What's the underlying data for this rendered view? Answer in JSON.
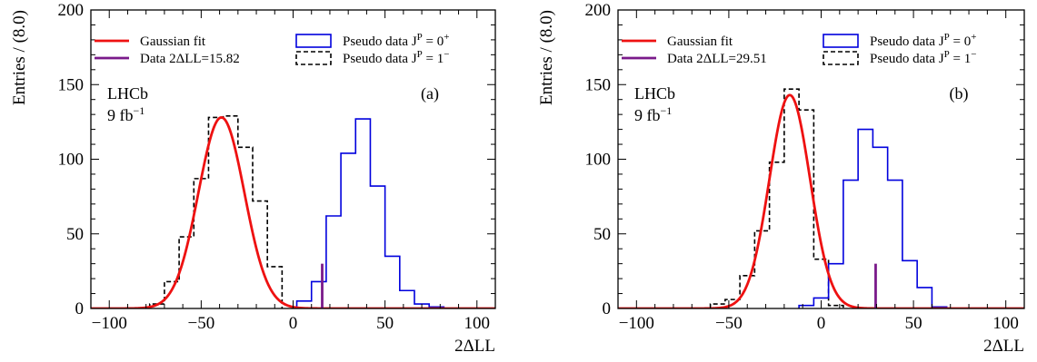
{
  "colors": {
    "fit": "#ee1111",
    "data": "#7a1a8a",
    "jp0": "#0000dd",
    "jp1": "#000000"
  },
  "chart_data": [
    {
      "type": "histogram",
      "panel_label": "(a)",
      "experiment": "LHCb",
      "luminosity": "9 fb",
      "luminosity_sup": "−1",
      "xlabel": "2ΔLL",
      "ylabel": "Entries / (8.0)",
      "xlim": [
        -110,
        110
      ],
      "ylim": [
        0,
        200
      ],
      "xticks": [
        -100,
        -50,
        0,
        50,
        100
      ],
      "yticks": [
        0,
        50,
        100,
        150,
        200
      ],
      "legend": {
        "fit": "Gaussian fit",
        "data": "Data 2ΔLL=15.82",
        "jp0": "Pseudo data J",
        "jp0_sup": "P",
        "jp0_tail": " = 0",
        "jp0_parity": "+",
        "jp1": "Pseudo data J",
        "jp1_sup": "P",
        "jp1_tail": " = 1",
        "jp1_parity": "−"
      },
      "data_value": 15.82,
      "data_line_height": 30,
      "gaussian_fit": {
        "mean": -39,
        "sigma": 12.5,
        "amplitude": 128
      },
      "series": [
        {
          "key": "jp1",
          "bin_edges": [
            -78,
            -70,
            -62,
            -54,
            -46,
            -38,
            -30,
            -22,
            -14,
            -6
          ],
          "counts": [
            3,
            18,
            48,
            87,
            128,
            129,
            108,
            72,
            28
          ]
        },
        {
          "key": "jp0",
          "bin_edges": [
            2,
            10,
            18,
            26,
            34,
            42,
            50,
            58,
            66,
            74,
            82
          ],
          "counts": [
            5,
            18,
            62,
            104,
            127,
            82,
            35,
            12,
            3,
            1
          ]
        }
      ]
    },
    {
      "type": "histogram",
      "panel_label": "(b)",
      "experiment": "LHCb",
      "luminosity": "9 fb",
      "luminosity_sup": "−1",
      "xlabel": "2ΔLL",
      "ylabel": "Entries / (8.0)",
      "xlim": [
        -110,
        110
      ],
      "ylim": [
        0,
        200
      ],
      "xticks": [
        -100,
        -50,
        0,
        50,
        100
      ],
      "yticks": [
        0,
        50,
        100,
        150,
        200
      ],
      "legend": {
        "fit": "Gaussian fit",
        "data": "Data 2ΔLL=29.51",
        "jp0": "Pseudo data J",
        "jp0_sup": "P",
        "jp0_tail": " = 0",
        "jp0_parity": "+",
        "jp1": "Pseudo data J",
        "jp1_sup": "P",
        "jp1_tail": " = 1",
        "jp1_parity": "−"
      },
      "data_value": 29.51,
      "data_line_height": 30,
      "gaussian_fit": {
        "mean": -17,
        "sigma": 11,
        "amplitude": 143
      },
      "series": [
        {
          "key": "jp1",
          "bin_edges": [
            -60,
            -52,
            -44,
            -36,
            -28,
            -20,
            -12,
            -4,
            4,
            12
          ],
          "counts": [
            3,
            6,
            22,
            52,
            98,
            147,
            133,
            33,
            2
          ]
        },
        {
          "key": "jp0",
          "bin_edges": [
            -12,
            -4,
            4,
            12,
            20,
            28,
            36,
            44,
            52,
            60,
            68
          ],
          "counts": [
            2,
            7,
            30,
            86,
            120,
            108,
            86,
            32,
            14,
            1
          ]
        }
      ]
    }
  ]
}
